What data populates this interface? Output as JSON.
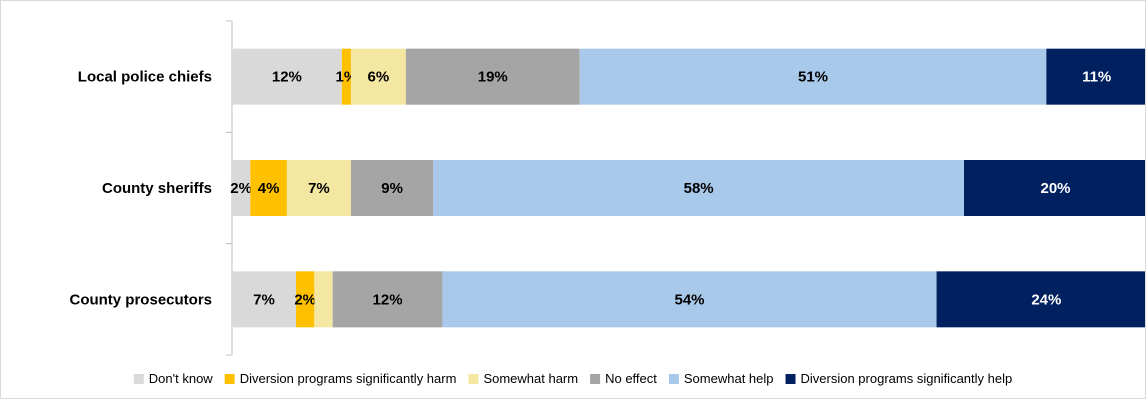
{
  "chart_data": {
    "type": "bar",
    "orientation": "horizontal",
    "stacked": true,
    "percent_stacked": true,
    "grid": false,
    "legend_position": "bottom",
    "xlim": [
      0,
      100
    ],
    "categories": [
      "Local police chiefs",
      "County sheriffs",
      "County prosecutors"
    ],
    "series": [
      {
        "name": "Don't know",
        "color": "#d9d9d9",
        "label_color": "#000000",
        "values": [
          12,
          2,
          7
        ],
        "labels": [
          "12%",
          "2%",
          "7%"
        ]
      },
      {
        "name": "Diversion programs significantly harm",
        "color": "#ffc000",
        "label_color": "#000000",
        "values": [
          1,
          4,
          2
        ],
        "labels": [
          "1%",
          "4%",
          "2%"
        ]
      },
      {
        "name": "Somewhat harm",
        "color": "#f4e7a1",
        "label_color": "#000000",
        "values": [
          6,
          7,
          2
        ],
        "labels": [
          "6%",
          "7%",
          ""
        ]
      },
      {
        "name": "No effect",
        "color": "#a5a5a5",
        "label_color": "#000000",
        "values": [
          19,
          9,
          12
        ],
        "labels": [
          "19%",
          "9%",
          "12%"
        ]
      },
      {
        "name": "Somewhat help",
        "color": "#a9c9eb",
        "label_color": "#000000",
        "values": [
          51,
          58,
          54
        ],
        "labels": [
          "51%",
          "58%",
          "54%"
        ]
      },
      {
        "name": "Diversion programs significantly help",
        "color": "#002060",
        "label_color": "#ffffff",
        "values": [
          11,
          20,
          24
        ],
        "labels": [
          "11%",
          "20%",
          "24%"
        ]
      }
    ]
  }
}
